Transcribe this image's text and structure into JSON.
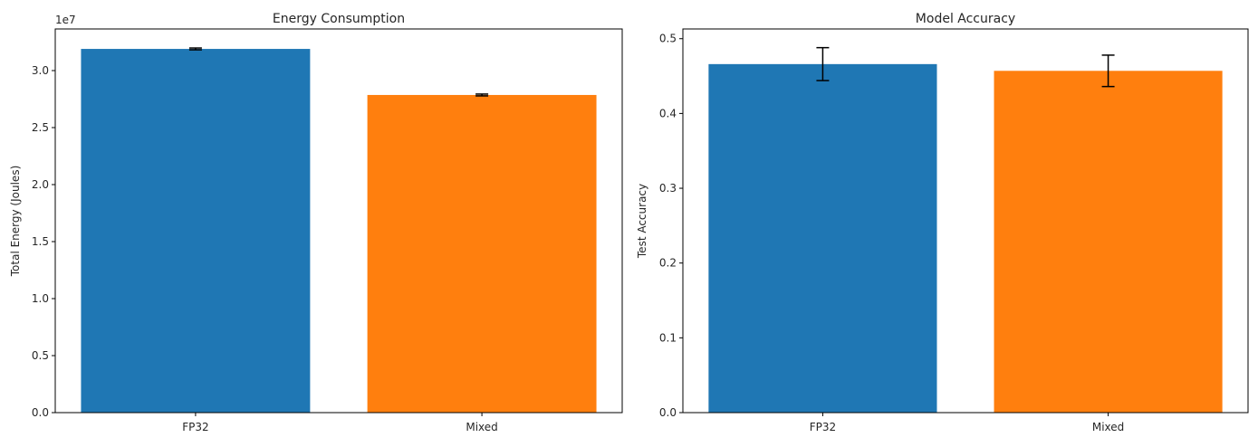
{
  "chart_data": [
    {
      "type": "bar",
      "title": "Energy Consumption",
      "xlabel": "",
      "ylabel": "Total Energy (Joules)",
      "offset_label": "1e7",
      "categories": [
        "FP32",
        "Mixed"
      ],
      "values": [
        31900000,
        27860000
      ],
      "errors": [
        80000,
        80000
      ],
      "colors": [
        "#1f77b4",
        "#ff7f0e"
      ],
      "ylim": [
        0,
        33650000
      ],
      "yticks": [
        0.0,
        0.5,
        1.0,
        1.5,
        2.0,
        2.5,
        3.0
      ],
      "ytick_labels": [
        "0.0",
        "0.5",
        "1.0",
        "1.5",
        "2.0",
        "2.5",
        "3.0"
      ],
      "grid": false,
      "legend": null
    },
    {
      "type": "bar",
      "title": "Model Accuracy",
      "xlabel": "",
      "ylabel": "Test Accuracy",
      "categories": [
        "FP32",
        "Mixed"
      ],
      "values": [
        0.466,
        0.457
      ],
      "errors": [
        0.022,
        0.021
      ],
      "colors": [
        "#1f77b4",
        "#ff7f0e"
      ],
      "ylim": [
        0,
        0.513
      ],
      "yticks": [
        0.0,
        0.1,
        0.2,
        0.3,
        0.4,
        0.5
      ],
      "ytick_labels": [
        "0.0",
        "0.1",
        "0.2",
        "0.3",
        "0.4",
        "0.5"
      ],
      "grid": false,
      "legend": null
    }
  ]
}
